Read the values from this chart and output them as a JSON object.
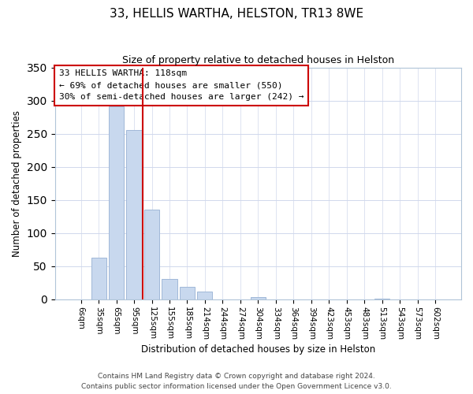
{
  "title": "33, HELLIS WARTHA, HELSTON, TR13 8WE",
  "subtitle": "Size of property relative to detached houses in Helston",
  "xlabel": "Distribution of detached houses by size in Helston",
  "ylabel": "Number of detached properties",
  "bar_labels": [
    "6sqm",
    "35sqm",
    "65sqm",
    "95sqm",
    "125sqm",
    "155sqm",
    "185sqm",
    "214sqm",
    "244sqm",
    "274sqm",
    "304sqm",
    "334sqm",
    "364sqm",
    "394sqm",
    "423sqm",
    "453sqm",
    "483sqm",
    "513sqm",
    "543sqm",
    "573sqm",
    "602sqm"
  ],
  "bar_values": [
    0,
    63,
    291,
    256,
    135,
    30,
    18,
    11,
    0,
    0,
    3,
    0,
    0,
    0,
    0,
    0,
    0,
    1,
    0,
    0,
    0
  ],
  "bar_color": "#c8d8ee",
  "bar_edge_color": "#a0b8d8",
  "vline_x": 3.5,
  "vline_color": "#cc0000",
  "ylim": [
    0,
    350
  ],
  "yticks": [
    0,
    50,
    100,
    150,
    200,
    250,
    300,
    350
  ],
  "annotation_text": "33 HELLIS WARTHA: 118sqm\n← 69% of detached houses are smaller (550)\n30% of semi-detached houses are larger (242) →",
  "annotation_box_color": "#ffffff",
  "annotation_box_edge": "#cc0000",
  "footer_line1": "Contains HM Land Registry data © Crown copyright and database right 2024.",
  "footer_line2": "Contains public sector information licensed under the Open Government Licence v3.0.",
  "background_color": "#ffffff",
  "grid_color": "#d0d8ec",
  "title_fontsize": 11,
  "subtitle_fontsize": 9,
  "axis_label_fontsize": 8.5,
  "tick_fontsize": 7.5,
  "annotation_fontsize": 8.0,
  "footer_fontsize": 6.5
}
